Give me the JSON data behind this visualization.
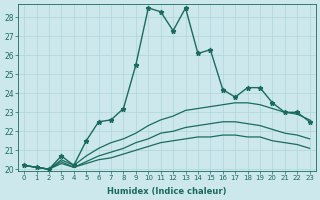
{
  "xlabel": "Humidex (Indice chaleur)",
  "background_color": "#cce8ec",
  "grid_color": "#aed4d8",
  "line_color": "#1a6b5e",
  "xlim": [
    -0.5,
    23.5
  ],
  "ylim": [
    19.9,
    28.7
  ],
  "yticks": [
    20,
    21,
    22,
    23,
    24,
    25,
    26,
    27,
    28
  ],
  "xticks": [
    0,
    1,
    2,
    3,
    4,
    5,
    6,
    7,
    8,
    9,
    10,
    11,
    12,
    13,
    14,
    15,
    16,
    17,
    18,
    19,
    20,
    21,
    22,
    23
  ],
  "series": [
    {
      "x": [
        0,
        1,
        2,
        3,
        4,
        5,
        6,
        7,
        8,
        9,
        10,
        11,
        12,
        13,
        14,
        15,
        16,
        17,
        18,
        19,
        20,
        21,
        22,
        23
      ],
      "y": [
        20.2,
        20.1,
        20.0,
        20.7,
        20.2,
        21.5,
        22.5,
        22.6,
        23.2,
        25.5,
        28.5,
        28.3,
        27.3,
        28.5,
        26.1,
        26.3,
        24.2,
        23.8,
        24.3,
        24.3,
        23.5,
        23.0,
        23.0,
        22.5
      ],
      "marker": "*",
      "markersize": 3.5,
      "linewidth": 1.0
    },
    {
      "x": [
        0,
        1,
        2,
        3,
        4,
        5,
        6,
        7,
        8,
        9,
        10,
        11,
        12,
        13,
        14,
        15,
        16,
        17,
        18,
        19,
        20,
        21,
        22,
        23
      ],
      "y": [
        20.2,
        20.1,
        20.0,
        20.5,
        20.2,
        20.7,
        21.1,
        21.4,
        21.6,
        21.9,
        22.3,
        22.6,
        22.8,
        23.1,
        23.2,
        23.3,
        23.4,
        23.5,
        23.5,
        23.4,
        23.2,
        23.0,
        22.9,
        22.6
      ],
      "marker": null,
      "markersize": 0,
      "linewidth": 0.9
    },
    {
      "x": [
        0,
        1,
        2,
        3,
        4,
        5,
        6,
        7,
        8,
        9,
        10,
        11,
        12,
        13,
        14,
        15,
        16,
        17,
        18,
        19,
        20,
        21,
        22,
        23
      ],
      "y": [
        20.2,
        20.1,
        20.0,
        20.4,
        20.1,
        20.4,
        20.7,
        20.9,
        21.1,
        21.4,
        21.6,
        21.9,
        22.0,
        22.2,
        22.3,
        22.4,
        22.5,
        22.5,
        22.4,
        22.3,
        22.1,
        21.9,
        21.8,
        21.6
      ],
      "marker": null,
      "markersize": 0,
      "linewidth": 0.9
    },
    {
      "x": [
        0,
        1,
        2,
        3,
        4,
        5,
        6,
        7,
        8,
        9,
        10,
        11,
        12,
        13,
        14,
        15,
        16,
        17,
        18,
        19,
        20,
        21,
        22,
        23
      ],
      "y": [
        20.2,
        20.1,
        20.0,
        20.3,
        20.1,
        20.3,
        20.5,
        20.6,
        20.8,
        21.0,
        21.2,
        21.4,
        21.5,
        21.6,
        21.7,
        21.7,
        21.8,
        21.8,
        21.7,
        21.7,
        21.5,
        21.4,
        21.3,
        21.1
      ],
      "marker": null,
      "markersize": 0,
      "linewidth": 0.9
    }
  ]
}
